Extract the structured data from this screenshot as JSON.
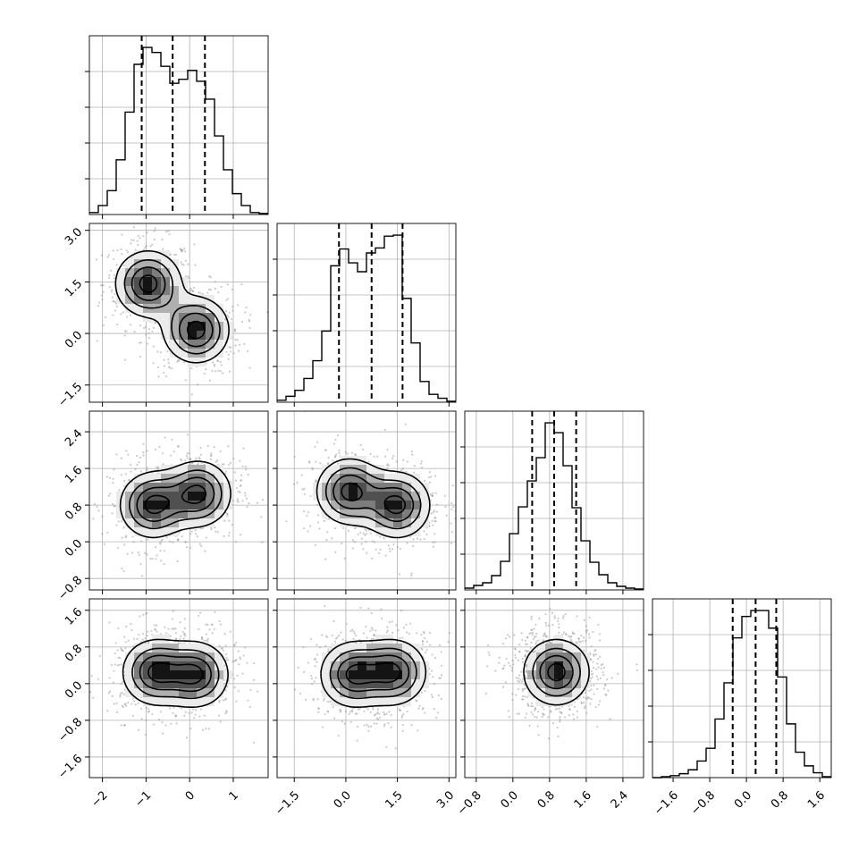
{
  "chart_data": {
    "type": "corner",
    "n_params": 4,
    "params": [
      {
        "range": [
          -2.3,
          1.8
        ],
        "ticks": [
          -2,
          -1,
          0,
          1
        ],
        "tick_labels": [
          "−2",
          "−1",
          "0",
          "1"
        ],
        "histogram": {
          "bins": [
            -2.3,
            -2.095,
            -1.89,
            -1.685,
            -1.48,
            -1.275,
            -1.07,
            -0.865,
            -0.66,
            -0.455,
            -0.25,
            -0.045,
            0.16,
            0.365,
            0.57,
            0.775,
            0.98,
            1.185,
            1.39,
            1.595,
            1.8
          ],
          "counts": [
            2,
            9,
            24,
            55,
            103,
            151,
            168,
            163,
            149,
            132,
            136,
            145,
            134,
            116,
            79,
            45,
            21,
            9,
            2,
            1
          ]
        },
        "quantiles": [
          -1.1,
          -0.39,
          0.35
        ]
      },
      {
        "range": [
          -2.0,
          3.2
        ],
        "ticks": [
          -1.5,
          0.0,
          1.5,
          3.0
        ],
        "tick_labels": [
          "−1.5",
          "0.0",
          "1.5",
          "3.0"
        ],
        "histogram": {
          "bins": [
            -2.0,
            -1.74,
            -1.48,
            -1.22,
            -0.96,
            -0.7,
            -0.44,
            -0.18,
            0.08,
            0.34,
            0.6,
            0.86,
            1.12,
            1.38,
            1.64,
            1.9,
            2.16,
            2.42,
            2.68,
            2.94,
            3.2
          ],
          "counts": [
            2,
            6,
            12,
            24,
            42,
            72,
            138,
            155,
            141,
            132,
            151,
            156,
            168,
            169,
            105,
            60,
            21,
            8,
            4,
            1
          ]
        },
        "quantiles": [
          -0.2,
          0.75,
          1.65
        ]
      },
      {
        "range": [
          -1.05,
          2.85
        ],
        "ticks": [
          -0.8,
          0.0,
          0.8,
          1.6,
          2.4
        ],
        "tick_labels": [
          "−0.8",
          "0.0",
          "0.8",
          "1.6",
          "2.4"
        ],
        "histogram": {
          "bins": [
            -1.05,
            -0.855,
            -0.66,
            -0.465,
            -0.27,
            -0.075,
            0.12,
            0.315,
            0.51,
            0.705,
            0.9,
            1.095,
            1.29,
            1.485,
            1.68,
            1.875,
            2.07,
            2.265,
            2.46,
            2.655,
            2.85
          ],
          "counts": [
            2,
            5,
            8,
            16,
            32,
            63,
            93,
            122,
            148,
            187,
            176,
            139,
            92,
            55,
            31,
            17,
            8,
            4,
            2,
            1
          ]
        },
        "quantiles": [
          0.42,
          0.9,
          1.38
        ]
      },
      {
        "range": [
          -2.05,
          1.85
        ],
        "ticks": [
          -1.6,
          -0.8,
          0.0,
          0.8,
          1.6
        ],
        "tick_labels": [
          "−1.6",
          "−0.8",
          "0.0",
          "0.8",
          "1.6"
        ],
        "histogram": {
          "bins": [
            -2.05,
            -1.855,
            -1.66,
            -1.465,
            -1.27,
            -1.075,
            -0.88,
            -0.685,
            -0.49,
            -0.295,
            -0.1,
            0.095,
            0.29,
            0.485,
            0.68,
            0.875,
            1.07,
            1.265,
            1.46,
            1.655,
            1.85
          ],
          "counts": [
            0,
            1,
            2,
            4,
            8,
            17,
            30,
            60,
            97,
            143,
            165,
            171,
            171,
            153,
            103,
            55,
            26,
            12,
            5,
            1
          ]
        },
        "quantiles": [
          -0.3,
          0.2,
          0.65
        ]
      }
    ],
    "joint_panels": [
      {
        "row": 1,
        "col": 0,
        "peaks": [
          [
            -0.95,
            1.45
          ],
          [
            0.15,
            0.1
          ]
        ]
      },
      {
        "row": 2,
        "col": 0,
        "peaks": [
          [
            -0.85,
            0.8
          ],
          [
            0.2,
            1.05
          ]
        ]
      },
      {
        "row": 2,
        "col": 1,
        "peaks": [
          [
            0.1,
            1.1
          ],
          [
            1.5,
            0.8
          ]
        ]
      },
      {
        "row": 3,
        "col": 0,
        "peaks": [
          [
            -0.8,
            0.25
          ],
          [
            0.15,
            0.2
          ]
        ]
      },
      {
        "row": 3,
        "col": 1,
        "peaks": [
          [
            0.2,
            0.2
          ],
          [
            1.4,
            0.25
          ]
        ]
      },
      {
        "row": 3,
        "col": 2,
        "peaks": [
          [
            0.95,
            0.25
          ]
        ]
      }
    ],
    "grid": true,
    "colors": {
      "line": "#000000",
      "grid": "#b0b0b0",
      "scatter": "#666666"
    }
  }
}
